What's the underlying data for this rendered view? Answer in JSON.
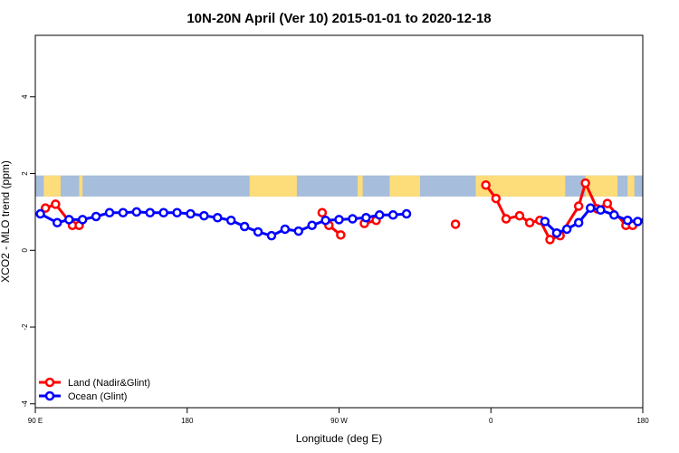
{
  "chart_data": {
    "type": "line",
    "title": "10N-20N April (Ver 10)   2015-01-01 to 2020-12-18",
    "xlabel": "Longitude (deg E)",
    "ylabel": "XCO2 - MLO trend (ppm)",
    "xlim": [
      90,
      450
    ],
    "ylim": [
      -4.1,
      5.6
    ],
    "x_ticks": [
      {
        "value": 90,
        "label": "90 E"
      },
      {
        "value": 180,
        "label": "180"
      },
      {
        "value": 270,
        "label": "90 W"
      },
      {
        "value": 360,
        "label": "0"
      },
      {
        "value": 450,
        "label": "180"
      }
    ],
    "y_ticks": [
      {
        "value": -4,
        "label": "-4"
      },
      {
        "value": -2,
        "label": "-2"
      },
      {
        "value": 0,
        "label": "0"
      },
      {
        "value": 2,
        "label": "2"
      },
      {
        "value": 4,
        "label": "4"
      }
    ],
    "land_band": {
      "ymin": 1.4,
      "ymax": 1.95,
      "ocean_color": "#a6bddb",
      "land_color": "#fddc7a",
      "land_ranges": [
        [
          95,
          105
        ],
        [
          116,
          118
        ],
        [
          217,
          245
        ],
        [
          281,
          284
        ],
        [
          300,
          318
        ],
        [
          351,
          404
        ],
        [
          416,
          435
        ],
        [
          441,
          445
        ]
      ]
    },
    "legend": {
      "position": "bottom-left"
    },
    "series": [
      {
        "name": "Land (Nadir&Glint)",
        "color": "#ff0000",
        "segments": [
          [
            [
              96,
              1.1
            ],
            [
              102,
              1.2
            ],
            [
              112,
              0.65
            ],
            [
              116,
              0.65
            ]
          ],
          [
            [
              260,
              0.98
            ],
            [
              264,
              0.65
            ],
            [
              271,
              0.4
            ]
          ],
          [
            [
              285,
              0.7
            ],
            [
              292,
              0.78
            ]
          ],
          [
            [
              339,
              0.68
            ]
          ],
          [
            [
              357,
              1.7
            ],
            [
              363,
              1.35
            ],
            [
              369,
              0.82
            ],
            [
              377,
              0.9
            ],
            [
              383,
              0.72
            ],
            [
              389,
              0.78
            ],
            [
              395,
              0.28
            ],
            [
              401,
              0.38
            ],
            [
              412,
              1.15
            ],
            [
              416,
              1.75
            ],
            [
              423,
              1.08
            ],
            [
              429,
              1.22
            ],
            [
              440,
              0.65
            ],
            [
              444,
              0.65
            ]
          ]
        ]
      },
      {
        "name": "Ocean (Glint)",
        "color": "#0000ff",
        "segments": [
          [
            [
              93,
              0.95
            ],
            [
              103,
              0.72
            ],
            [
              110,
              0.8
            ],
            [
              118,
              0.8
            ],
            [
              126,
              0.88
            ],
            [
              134,
              0.98
            ],
            [
              142,
              0.98
            ],
            [
              150,
              1.0
            ],
            [
              158,
              0.98
            ],
            [
              166,
              0.98
            ],
            [
              174,
              0.98
            ],
            [
              182,
              0.95
            ],
            [
              190,
              0.9
            ],
            [
              198,
              0.85
            ],
            [
              206,
              0.78
            ],
            [
              214,
              0.62
            ],
            [
              222,
              0.48
            ],
            [
              230,
              0.38
            ],
            [
              238,
              0.55
            ],
            [
              246,
              0.5
            ],
            [
              254,
              0.65
            ],
            [
              262,
              0.78
            ],
            [
              270,
              0.8
            ],
            [
              278,
              0.82
            ],
            [
              286,
              0.85
            ],
            [
              294,
              0.92
            ],
            [
              302,
              0.92
            ],
            [
              310,
              0.95
            ]
          ],
          [
            [
              392,
              0.75
            ],
            [
              399,
              0.45
            ],
            [
              405,
              0.55
            ],
            [
              412,
              0.72
            ],
            [
              419,
              1.1
            ],
            [
              425,
              1.05
            ],
            [
              433,
              0.92
            ],
            [
              441,
              0.78
            ],
            [
              447,
              0.75
            ],
            [
              452,
              0.78
            ],
            [
              460,
              0.9
            ],
            [
              468,
              0.98
            ],
            [
              476,
              0.98
            ],
            [
              484,
              0.98
            ],
            [
              492,
              1.0
            ],
            [
              500,
              0.98
            ]
          ]
        ]
      }
    ]
  }
}
